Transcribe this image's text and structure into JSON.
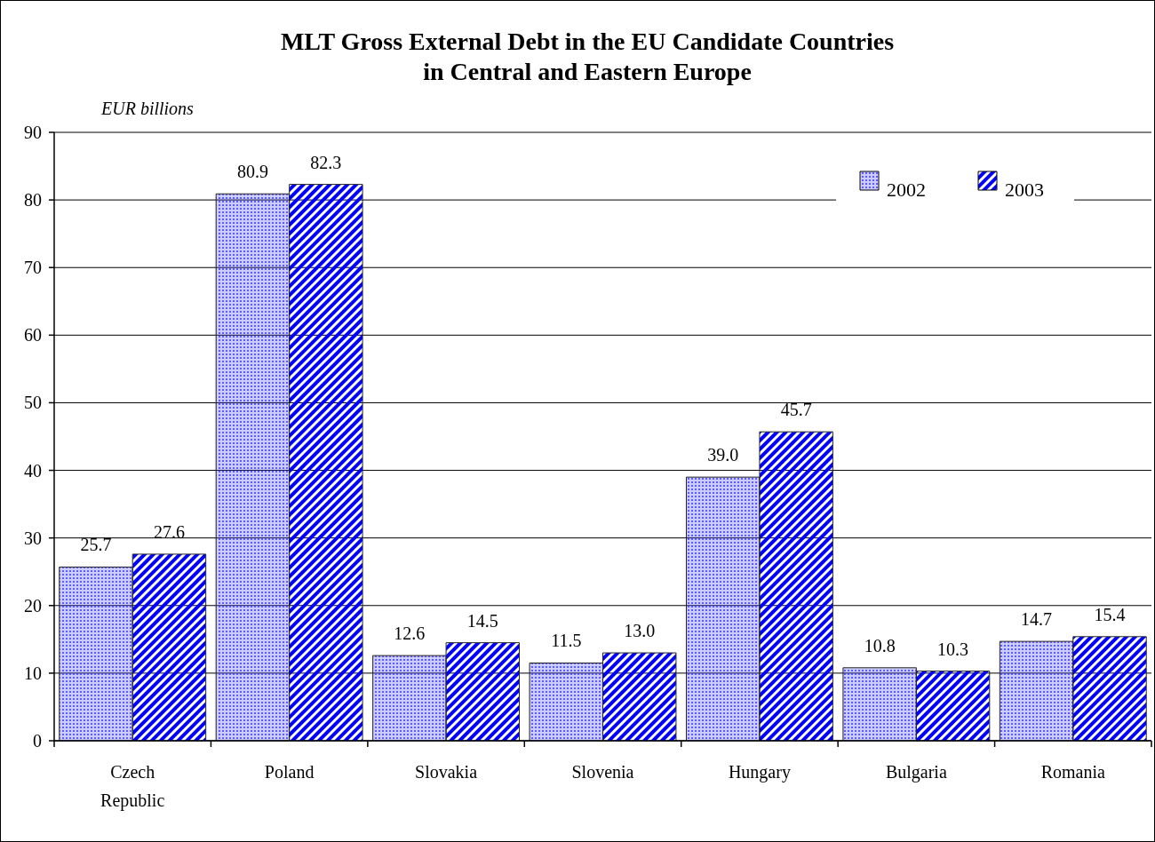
{
  "chart_data": {
    "type": "bar",
    "title": "MLT Gross External Debt in the EU Candidate Countries\nin Central and Eastern Europe",
    "ylabel": "EUR billions",
    "categories": [
      "Czech Republic",
      "Poland",
      "Slovakia",
      "Slovenia",
      "Hungary",
      "Bulgaria",
      "Romania"
    ],
    "series": [
      {
        "name": "2002",
        "color": "#4040ff",
        "values": [
          25.7,
          80.9,
          12.6,
          11.5,
          39.0,
          10.8,
          14.7
        ],
        "value_labels": [
          "25.7",
          "80.9",
          "12.6",
          "11.5",
          "39.0",
          "10.8",
          "14.7"
        ]
      },
      {
        "name": "2003",
        "color": "#0000ff",
        "values": [
          27.6,
          82.3,
          14.5,
          13.0,
          45.7,
          10.3,
          15.4
        ],
        "value_labels": [
          "27.6",
          "82.3",
          "14.5",
          "13.0",
          "45.7",
          "10.3",
          "15.4"
        ]
      }
    ],
    "ylim": [
      0,
      90
    ],
    "yticks": [
      0,
      10,
      20,
      30,
      40,
      50,
      60,
      70,
      80,
      90
    ],
    "grid": "y",
    "legend": "top right"
  }
}
